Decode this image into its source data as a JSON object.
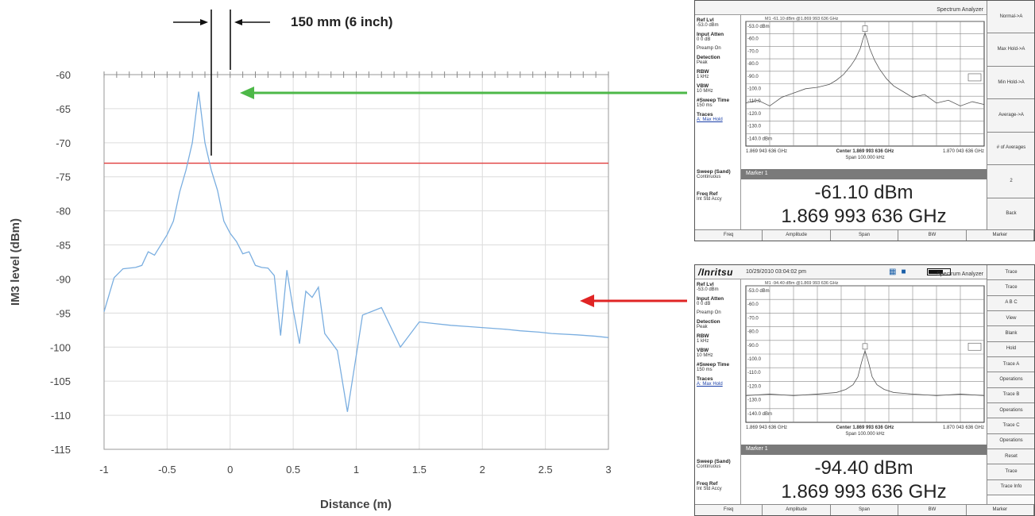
{
  "chart_data": [
    {
      "type": "line",
      "annotation": "150 mm (6 inch)",
      "xlabel": "Distance (m)",
      "ylabel": "IM3 level (dBm)",
      "xlim": [
        -1,
        3
      ],
      "ylim": [
        -115,
        -60
      ],
      "xticks": [
        -1,
        -0.5,
        0,
        0.5,
        1,
        1.5,
        2,
        2.5,
        3
      ],
      "xtick_labels": [
        "-1",
        "-0.5",
        "0",
        "0.5",
        "1",
        "1.5",
        "2",
        "2.5",
        "3"
      ],
      "yticks": [
        -60,
        -65,
        -70,
        -75,
        -80,
        -85,
        -90,
        -95,
        -100,
        -105,
        -110,
        -115
      ],
      "ytick_labels": [
        "-60",
        "-65",
        "-70",
        "-75",
        "-80",
        "-85",
        "-90",
        "-95",
        "-100",
        "-105",
        "-110",
        "-115"
      ],
      "grid": true,
      "threshold": -73,
      "colors": {
        "series": "#7aaee0",
        "threshold": "#e03c3c",
        "green_arrow": "#4db848",
        "red_arrow": "#e02424"
      },
      "series": [
        {
          "x": [
            -1,
            -0.92,
            -0.85,
            -0.75,
            -0.7,
            -0.65,
            -0.6,
            -0.55,
            -0.5,
            -0.45,
            -0.4,
            -0.35,
            -0.3,
            -0.25,
            -0.2,
            -0.15,
            -0.1,
            -0.05,
            0,
            0.05,
            0.1,
            0.15,
            0.2,
            0.25,
            0.3,
            0.35,
            0.4,
            0.45,
            0.5,
            0.55,
            0.6,
            0.65,
            0.7,
            0.75,
            0.85,
            0.93,
            1.05,
            1.2,
            1.35,
            1.5,
            1.6,
            1.75,
            1.9,
            2.05,
            2.2,
            2.3,
            2.45,
            2.55,
            2.75,
            2.9,
            3
          ],
          "y": [
            -94.8,
            -89.8,
            -88.5,
            -88.3,
            -88,
            -86,
            -86.5,
            -85,
            -83.5,
            -81.5,
            -77.2,
            -74,
            -70,
            -62.5,
            -70,
            -74,
            -77,
            -81.5,
            -83.3,
            -84.5,
            -86.3,
            -86,
            -88,
            -88.3,
            -88.4,
            -89.5,
            -98.3,
            -88.7,
            -94.5,
            -99.5,
            -91.8,
            -92.7,
            -91.2,
            -98,
            -100.5,
            -109.5,
            -95.3,
            -94.2,
            -100,
            -96.3,
            -96.5,
            -96.8,
            -97,
            -97.2,
            -97.4,
            -97.6,
            -97.8,
            -98,
            -98.2,
            -98.4,
            -98.6
          ]
        }
      ]
    },
    {
      "type": "line",
      "title": "Spectrum Analyzer",
      "xlabel": "Span 100.000 kHz",
      "yticks": [
        -53.0,
        -60.0,
        -70.0,
        -80.0,
        -90.0,
        -100.0,
        -110.0,
        -120.0,
        -130.0,
        -140.0
      ],
      "ytick_labels": [
        "-53.0 dBm",
        "-60.0",
        "-70.0",
        "-80.0",
        "-90.0",
        "-100.0",
        "-110.0",
        "-120.0",
        "-130.0",
        "-140.0 dBm"
      ],
      "x_labels": [
        "1.869 943 636 GHz",
        "Center 1.869 993 636 GHz",
        "1.870 043 636 GHz"
      ],
      "ylim": [
        -140,
        -53
      ],
      "series": [
        {
          "x": [
            -50,
            -45,
            -40,
            -35,
            -30,
            -25,
            -20,
            -15,
            -12,
            -9,
            -6,
            -4,
            -2,
            -1,
            0,
            1,
            2,
            4,
            6,
            9,
            12,
            15,
            20,
            25,
            30,
            35,
            40,
            45,
            50
          ],
          "y": [
            -110,
            -108,
            -112,
            -106,
            -103,
            -100,
            -99,
            -97,
            -94,
            -90,
            -84,
            -79,
            -72,
            -66,
            -61.1,
            -66,
            -72,
            -80,
            -86,
            -93,
            -98,
            -101,
            -106,
            -104,
            -110,
            -108,
            -112,
            -109,
            -111
          ]
        }
      ]
    },
    {
      "type": "line",
      "title": "Spectrum Analyzer",
      "xlabel": "Span 100.000 kHz",
      "yticks": [
        -53.0,
        -60.0,
        -70.0,
        -80.0,
        -90.0,
        -100.0,
        -110.0,
        -120.0,
        -130.0,
        -140.0
      ],
      "ytick_labels": [
        "-53.0 dBm",
        "-60.0",
        "-70.0",
        "-80.0",
        "-90.0",
        "-100.0",
        "-110.0",
        "-120.0",
        "-130.0",
        "-140.0 dBm"
      ],
      "x_labels": [
        "1.869 943 636 GHz",
        "Center 1.869 993 636 GHz",
        "1.870 043 636 GHz"
      ],
      "ylim": [
        -140,
        -53
      ],
      "series": [
        {
          "x": [
            -50,
            -40,
            -30,
            -20,
            -12,
            -8,
            -5,
            -3,
            -1.5,
            0,
            1.5,
            3,
            5,
            8,
            12,
            20,
            30,
            40,
            50
          ],
          "y": [
            -123,
            -122,
            -123,
            -122,
            -121,
            -119,
            -116,
            -111,
            -102,
            -94.4,
            -102,
            -111,
            -116,
            -119,
            -121,
            -122,
            -123,
            -122,
            -123
          ]
        }
      ]
    }
  ],
  "analyzer_top": {
    "header": {
      "mode": "Spectrum Analyzer"
    },
    "meta": "M1 -61.10 dBm @1.869 993 636 GHz",
    "params": [
      {
        "label": "Ref Lvl",
        "value": "-53.0 dBm"
      },
      {
        "label": "Input Atten",
        "value": "0 0 dB"
      },
      {
        "label": "",
        "value": "Preamp On"
      },
      {
        "label": "Detection",
        "value": "Peak"
      },
      {
        "label": "RBW",
        "value": "1 kHz"
      },
      {
        "label": "VBW",
        "value": "10 MHz"
      },
      {
        "label": "#Sweep Time",
        "value": "150 ms"
      },
      {
        "label": "Traces",
        "value": "A: Max Hold"
      }
    ],
    "lower_params": [
      {
        "label": "Sweep (Sand)",
        "value": "Continuous"
      },
      {
        "label": "Freq Ref",
        "value": "Int Std Accy"
      }
    ],
    "marker_label": "Marker 1",
    "level": "-61.10 dBm",
    "frequency": "1.869 993 636 GHz",
    "buttons": [
      "Normal->A",
      "Max Hold->A",
      "Min Hold->A",
      "Average->A",
      "# of Averages",
      "2",
      "Back"
    ],
    "tabs": [
      "Freq",
      "Amplitude",
      "Span",
      "BW",
      "Marker"
    ]
  },
  "analyzer_bottom": {
    "header": {
      "logo": "/Inritsu",
      "datetime": "10/29/2010 03:04:02 pm",
      "mode": "Spectrum Analyzer"
    },
    "meta": "M1 -94.40 dBm @1.869 993 636 GHz",
    "params": [
      {
        "label": "Ref Lvl",
        "value": "-53.0 dBm"
      },
      {
        "label": "Input Atten",
        "value": "0 0 dB"
      },
      {
        "label": "",
        "value": "Preamp On"
      },
      {
        "label": "Detection",
        "value": "Peak"
      },
      {
        "label": "RBW",
        "value": "1 kHz"
      },
      {
        "label": "VBW",
        "value": "10 MHz"
      },
      {
        "label": "#Sweep Time",
        "value": "150 ms"
      },
      {
        "label": "Traces",
        "value": "A: Max Hold"
      }
    ],
    "lower_params": [
      {
        "label": "Sweep (Sand)",
        "value": "Continuous"
      },
      {
        "label": "Freq Ref",
        "value": "Int Std Accy"
      }
    ],
    "marker_label": "Marker 1",
    "level": "-94.40 dBm",
    "frequency": "1.869 993 636 GHz",
    "buttons": [
      "Trace",
      "Trace",
      "A B C",
      "View",
      "Blank",
      "Hold",
      "Trace A",
      "Operations",
      "Trace B",
      "Operations",
      "Trace C",
      "Operations",
      "Reset",
      "Trace",
      "Trace Info"
    ],
    "tabs": [
      "Freq",
      "Amplitude",
      "Span",
      "BW",
      "Marker"
    ]
  }
}
